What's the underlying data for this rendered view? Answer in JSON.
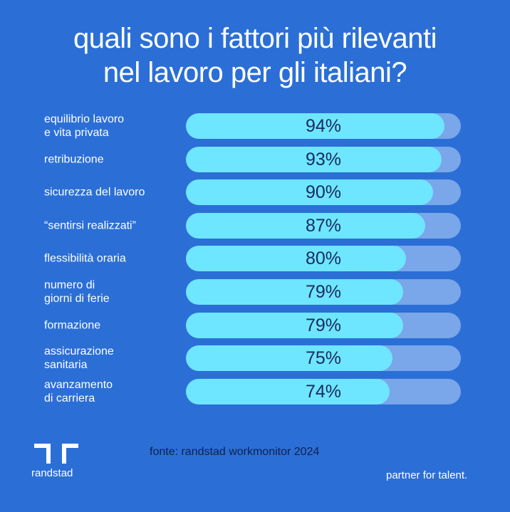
{
  "title": {
    "line1": "quali sono i fattori più rilevanti",
    "line2": "nel lavoro per gli italiani?"
  },
  "chart_data": {
    "type": "bar",
    "categories": [
      "equilibrio lavoro\ne vita privata",
      "retribuzione",
      "sicurezza del lavoro",
      "“sentirsi realizzati”",
      "flessibilità oraria",
      "numero di\ngiorni di ferie",
      "formazione",
      "assicurazione\nsanitaria",
      "avanzamento\ndi carriera"
    ],
    "values": [
      94,
      93,
      90,
      87,
      80,
      79,
      79,
      75,
      74
    ],
    "value_labels": [
      "94%",
      "93%",
      "90%",
      "87%",
      "80%",
      "79%",
      "79%",
      "75%",
      "74%"
    ],
    "unit": "%",
    "orientation": "horizontal",
    "ylim": [
      0,
      100
    ],
    "colors": {
      "fill": "#6ee6ff",
      "track": "#7aa6ea",
      "background": "#2b6fd6",
      "value_text": "#1a2a5e"
    }
  },
  "footer": {
    "brand": "randstad",
    "source": "fonte: randstad workmonitor 2024",
    "tagline": "partner for talent.",
    "logo_icon": "randstad-logo-icon"
  }
}
